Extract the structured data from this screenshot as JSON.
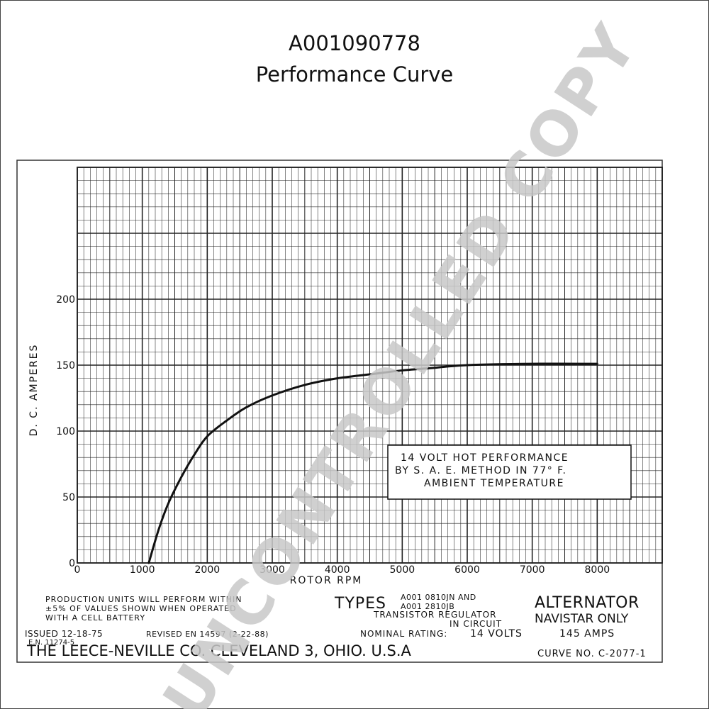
{
  "header": {
    "part_number": "A001090778",
    "subtitle": "Performance Curve"
  },
  "chart_data": {
    "type": "line",
    "xlabel": "ROTOR RPM",
    "ylabel": "D. C. AMPERES",
    "xlim": [
      0,
      9000
    ],
    "ylim": [
      0,
      300
    ],
    "xticks": [
      0,
      1000,
      2000,
      3000,
      4000,
      5000,
      6000,
      7000,
      8000
    ],
    "yticks": [
      0,
      50,
      100,
      150,
      200
    ],
    "grid": true,
    "series": [
      {
        "x": [
          1100,
          1250,
          1400,
          1600,
          1800,
          2000,
          2300,
          2600,
          3000,
          3500,
          4000,
          4500,
          5000,
          5500,
          6000,
          7000,
          8000
        ],
        "y": [
          0,
          25,
          45,
          65,
          82,
          96,
          108,
          118,
          127,
          135,
          140,
          143,
          146,
          148,
          150,
          151,
          151
        ]
      }
    ],
    "annotation": {
      "line1": "14 VOLT HOT PERFORMANCE",
      "line2": "BY  S. A. E.  METHOD  IN  77° F.",
      "line3": "AMBIENT  TEMPERATURE"
    }
  },
  "footer": {
    "production_note_1": "PRODUCTION  UNITS WILL  PERFORM WITHIN",
    "production_note_2": "±5% OF VALUES  SHOWN  WHEN  OPERATED",
    "production_note_3": "WITH A        CELL BATTERY",
    "types_label": "TYPES",
    "type_1": "A001 0810JN  AND",
    "type_2": "A001 2810JB",
    "regulator_1": "TRANSISTOR  REGULATOR",
    "regulator_2": "IN CIRCUIT",
    "product": "ALTERNATOR",
    "restriction": "NAVISTAR ONLY",
    "issued": "ISSUED 12-18-75",
    "en_number": "E.N. 11274-5",
    "revised": "REVISED  EN 14597 (2-22-88)",
    "rating_label": "NOMINAL RATING:",
    "rating_volts": "14  VOLTS",
    "rating_amps": "145  AMPS",
    "company": "THE LEECE-NEVILLE CO. CLEVELAND 3, OHIO. U.S.A",
    "curve_no": "CURVE NO. C-2077-1"
  },
  "watermark": "UNCONTROLLED COPY",
  "colors": {
    "ink": "#111111",
    "grid": "#222222",
    "watermark": "#c8c8c8"
  }
}
